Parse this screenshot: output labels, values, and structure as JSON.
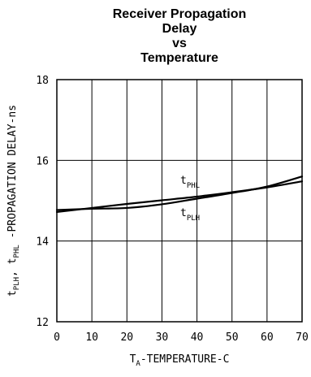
{
  "chart_data": {
    "type": "line",
    "title_lines": [
      "Receiver Propagation",
      "Delay",
      "vs",
      "Temperature"
    ],
    "xlabel": {
      "main": "T",
      "sub": "A",
      "rest": "-TEMPERATURE-C"
    },
    "ylabel": {
      "p1": "t",
      "s1": "PLH",
      "p2": ", t",
      "s2": "PHL",
      "p3": " -PROPAGATION DELAY-ns"
    },
    "xlim": [
      0,
      70
    ],
    "ylim": [
      12,
      18
    ],
    "xticks": [
      "0",
      "10",
      "20",
      "30",
      "40",
      "50",
      "60",
      "70"
    ],
    "yticks": [
      "12",
      "14",
      "16",
      "18"
    ],
    "grid": true,
    "x": [
      0,
      10,
      20,
      30,
      40,
      50,
      60,
      70
    ],
    "series": [
      {
        "name": "tPHL",
        "label_main": "t",
        "label_sub": "PHL",
        "values": [
          14.72,
          14.82,
          14.92,
          15.01,
          15.1,
          15.21,
          15.33,
          15.48
        ]
      },
      {
        "name": "tPLH",
        "label_main": "t",
        "label_sub": "PLH",
        "values": [
          14.77,
          14.8,
          14.82,
          14.91,
          15.05,
          15.19,
          15.35,
          15.6
        ]
      }
    ],
    "line_color": "#000000"
  }
}
